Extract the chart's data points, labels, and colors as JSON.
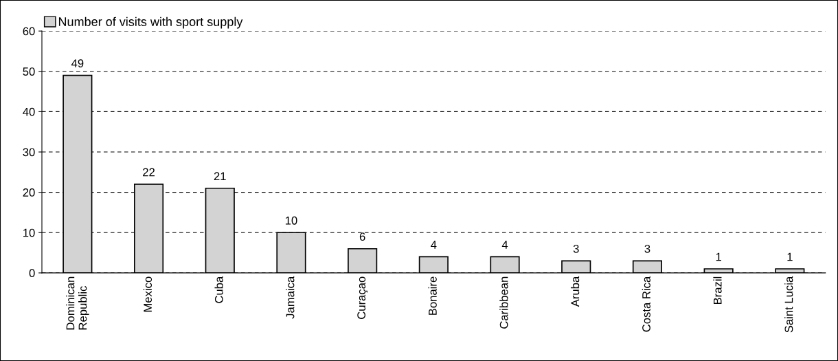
{
  "chart_data": {
    "type": "bar",
    "categories": [
      "Dominican\nRepublic",
      "Mexico",
      "Cuba",
      "Jamaica",
      "Curaçao",
      "Bonaire",
      "Caribbean",
      "Aruba",
      "Costa Rica",
      "Brazil",
      "Saint Lucia"
    ],
    "series": [
      {
        "name": "Number of visits with sport supply",
        "color": "#d3d3d3",
        "values": [
          49,
          22,
          21,
          10,
          6,
          4,
          4,
          3,
          3,
          1,
          1
        ]
      }
    ],
    "ylim": [
      0,
      60
    ],
    "yticks": [
      0,
      10,
      20,
      30,
      40,
      50,
      60
    ],
    "grid": "y",
    "legend": "top left",
    "data_labels": true
  }
}
